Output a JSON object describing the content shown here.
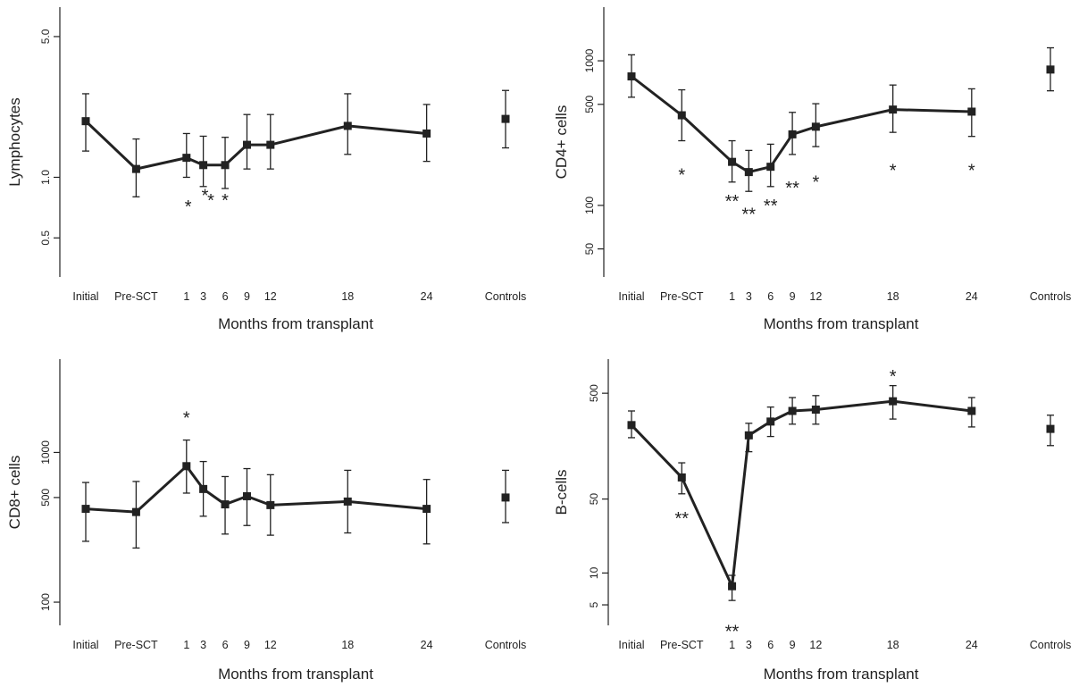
{
  "chart_data": [
    {
      "type": "line",
      "ylabel": "Lymphocytes",
      "xlabel": "Months from transplant",
      "y_scale": "log",
      "ylim": [
        0.32,
        7.0
      ],
      "y_ticks": [
        0.5,
        1.0,
        5.0
      ],
      "y_tick_labels": [
        "0.5",
        "1.0",
        "5.0"
      ],
      "categories": [
        "Initial",
        "Pre-SCT",
        "1",
        "3",
        "6",
        "9",
        "12",
        "18",
        "24",
        "Controls"
      ],
      "x_months": [
        -5,
        -2,
        1,
        2,
        3.3,
        4.6,
        6,
        10.6,
        15.3,
        20
      ],
      "values": [
        1.9,
        1.1,
        1.25,
        1.15,
        1.15,
        1.45,
        1.45,
        1.8,
        1.65,
        1.95
      ],
      "err_low": [
        1.35,
        0.8,
        1.0,
        0.9,
        0.88,
        1.1,
        1.1,
        1.3,
        1.2,
        1.4
      ],
      "err_high": [
        2.6,
        1.55,
        1.65,
        1.6,
        1.58,
        2.05,
        2.05,
        2.6,
        2.3,
        2.7
      ],
      "connected_points": 9,
      "annotations": [
        {
          "x": 1.1,
          "y": 0.74,
          "text": "*"
        },
        {
          "x": 2.1,
          "y": 0.84,
          "text": "*"
        },
        {
          "x": 2.45,
          "y": 0.795,
          "text": "*"
        },
        {
          "x": 3.3,
          "y": 0.795,
          "text": "*"
        }
      ]
    },
    {
      "type": "line",
      "ylabel": "CD4+ cells",
      "xlabel": "Months from transplant",
      "y_scale": "log",
      "ylim": [
        32,
        2350
      ],
      "y_ticks": [
        50,
        100,
        500,
        1000
      ],
      "y_tick_labels": [
        "50",
        "100",
        "500",
        "1000"
      ],
      "categories": [
        "Initial",
        "Pre-SCT",
        "1",
        "3",
        "6",
        "9",
        "12",
        "18",
        "24",
        "Controls"
      ],
      "x_months": [
        -5,
        -2,
        1,
        2,
        3.3,
        4.6,
        6,
        10.6,
        15.3,
        20
      ],
      "values": [
        780,
        420,
        200,
        170,
        185,
        310,
        350,
        460,
        445,
        870
      ],
      "err_low": [
        560,
        280,
        145,
        125,
        135,
        225,
        255,
        320,
        300,
        620
      ],
      "err_high": [
        1100,
        630,
        280,
        240,
        265,
        440,
        505,
        680,
        640,
        1230
      ],
      "connected_points": 9,
      "annotations": [
        {
          "x": -2,
          "y": 170,
          "text": "*"
        },
        {
          "x": 1,
          "y": 112,
          "text": "**"
        },
        {
          "x": 2,
          "y": 91,
          "text": "**"
        },
        {
          "x": 3.3,
          "y": 104,
          "text": "**"
        },
        {
          "x": 4.6,
          "y": 139,
          "text": "**"
        },
        {
          "x": 6,
          "y": 152,
          "text": "*"
        },
        {
          "x": 10.6,
          "y": 183,
          "text": "*"
        },
        {
          "x": 15.3,
          "y": 183,
          "text": "*"
        }
      ]
    },
    {
      "type": "line",
      "ylabel": "CD8+ cells",
      "xlabel": "Months from transplant",
      "y_scale": "log",
      "ylim": [
        70,
        4200
      ],
      "y_ticks": [
        100,
        500,
        1000
      ],
      "y_tick_labels": [
        "100",
        "500",
        "1000"
      ],
      "categories": [
        "Initial",
        "Pre-SCT",
        "1",
        "3",
        "6",
        "9",
        "12",
        "18",
        "24",
        "Controls"
      ],
      "x_months": [
        -5,
        -2,
        1,
        2,
        3.3,
        4.6,
        6,
        10.6,
        15.3,
        20
      ],
      "values": [
        420,
        400,
        810,
        570,
        450,
        510,
        445,
        470,
        420,
        500
      ],
      "err_low": [
        255,
        230,
        535,
        375,
        285,
        325,
        280,
        290,
        245,
        340
      ],
      "err_high": [
        630,
        640,
        1210,
        870,
        690,
        780,
        710,
        760,
        660,
        760
      ],
      "connected_points": 9,
      "annotations": [
        {
          "x": 1,
          "y": 1780,
          "text": "*"
        }
      ]
    },
    {
      "type": "line",
      "ylabel": "B-cells",
      "xlabel": "Months from transplant",
      "y_scale": "log",
      "ylim": [
        3.2,
        1050
      ],
      "y_ticks": [
        5,
        10,
        50,
        500
      ],
      "y_tick_labels": [
        "5",
        "10",
        "50",
        "500"
      ],
      "categories": [
        "Initial",
        "Pre-SCT",
        "1",
        "3",
        "6",
        "9",
        "12",
        "18",
        "24",
        "Controls"
      ],
      "x_months": [
        -5,
        -2,
        1,
        2,
        3.3,
        4.6,
        6,
        10.6,
        15.3,
        20
      ],
      "values": [
        250,
        80,
        7.5,
        200,
        270,
        340,
        350,
        420,
        340,
        230
      ],
      "err_low": [
        190,
        56,
        5.5,
        140,
        195,
        255,
        255,
        285,
        240,
        160
      ],
      "err_high": [
        340,
        110,
        9.5,
        260,
        370,
        455,
        475,
        590,
        455,
        310
      ],
      "connected_points": 9,
      "annotations": [
        {
          "x": -2,
          "y": 35,
          "text": "**"
        },
        {
          "x": 1,
          "y": 3.0,
          "text": "**"
        },
        {
          "x": 10.6,
          "y": 770,
          "text": "*"
        }
      ]
    }
  ]
}
